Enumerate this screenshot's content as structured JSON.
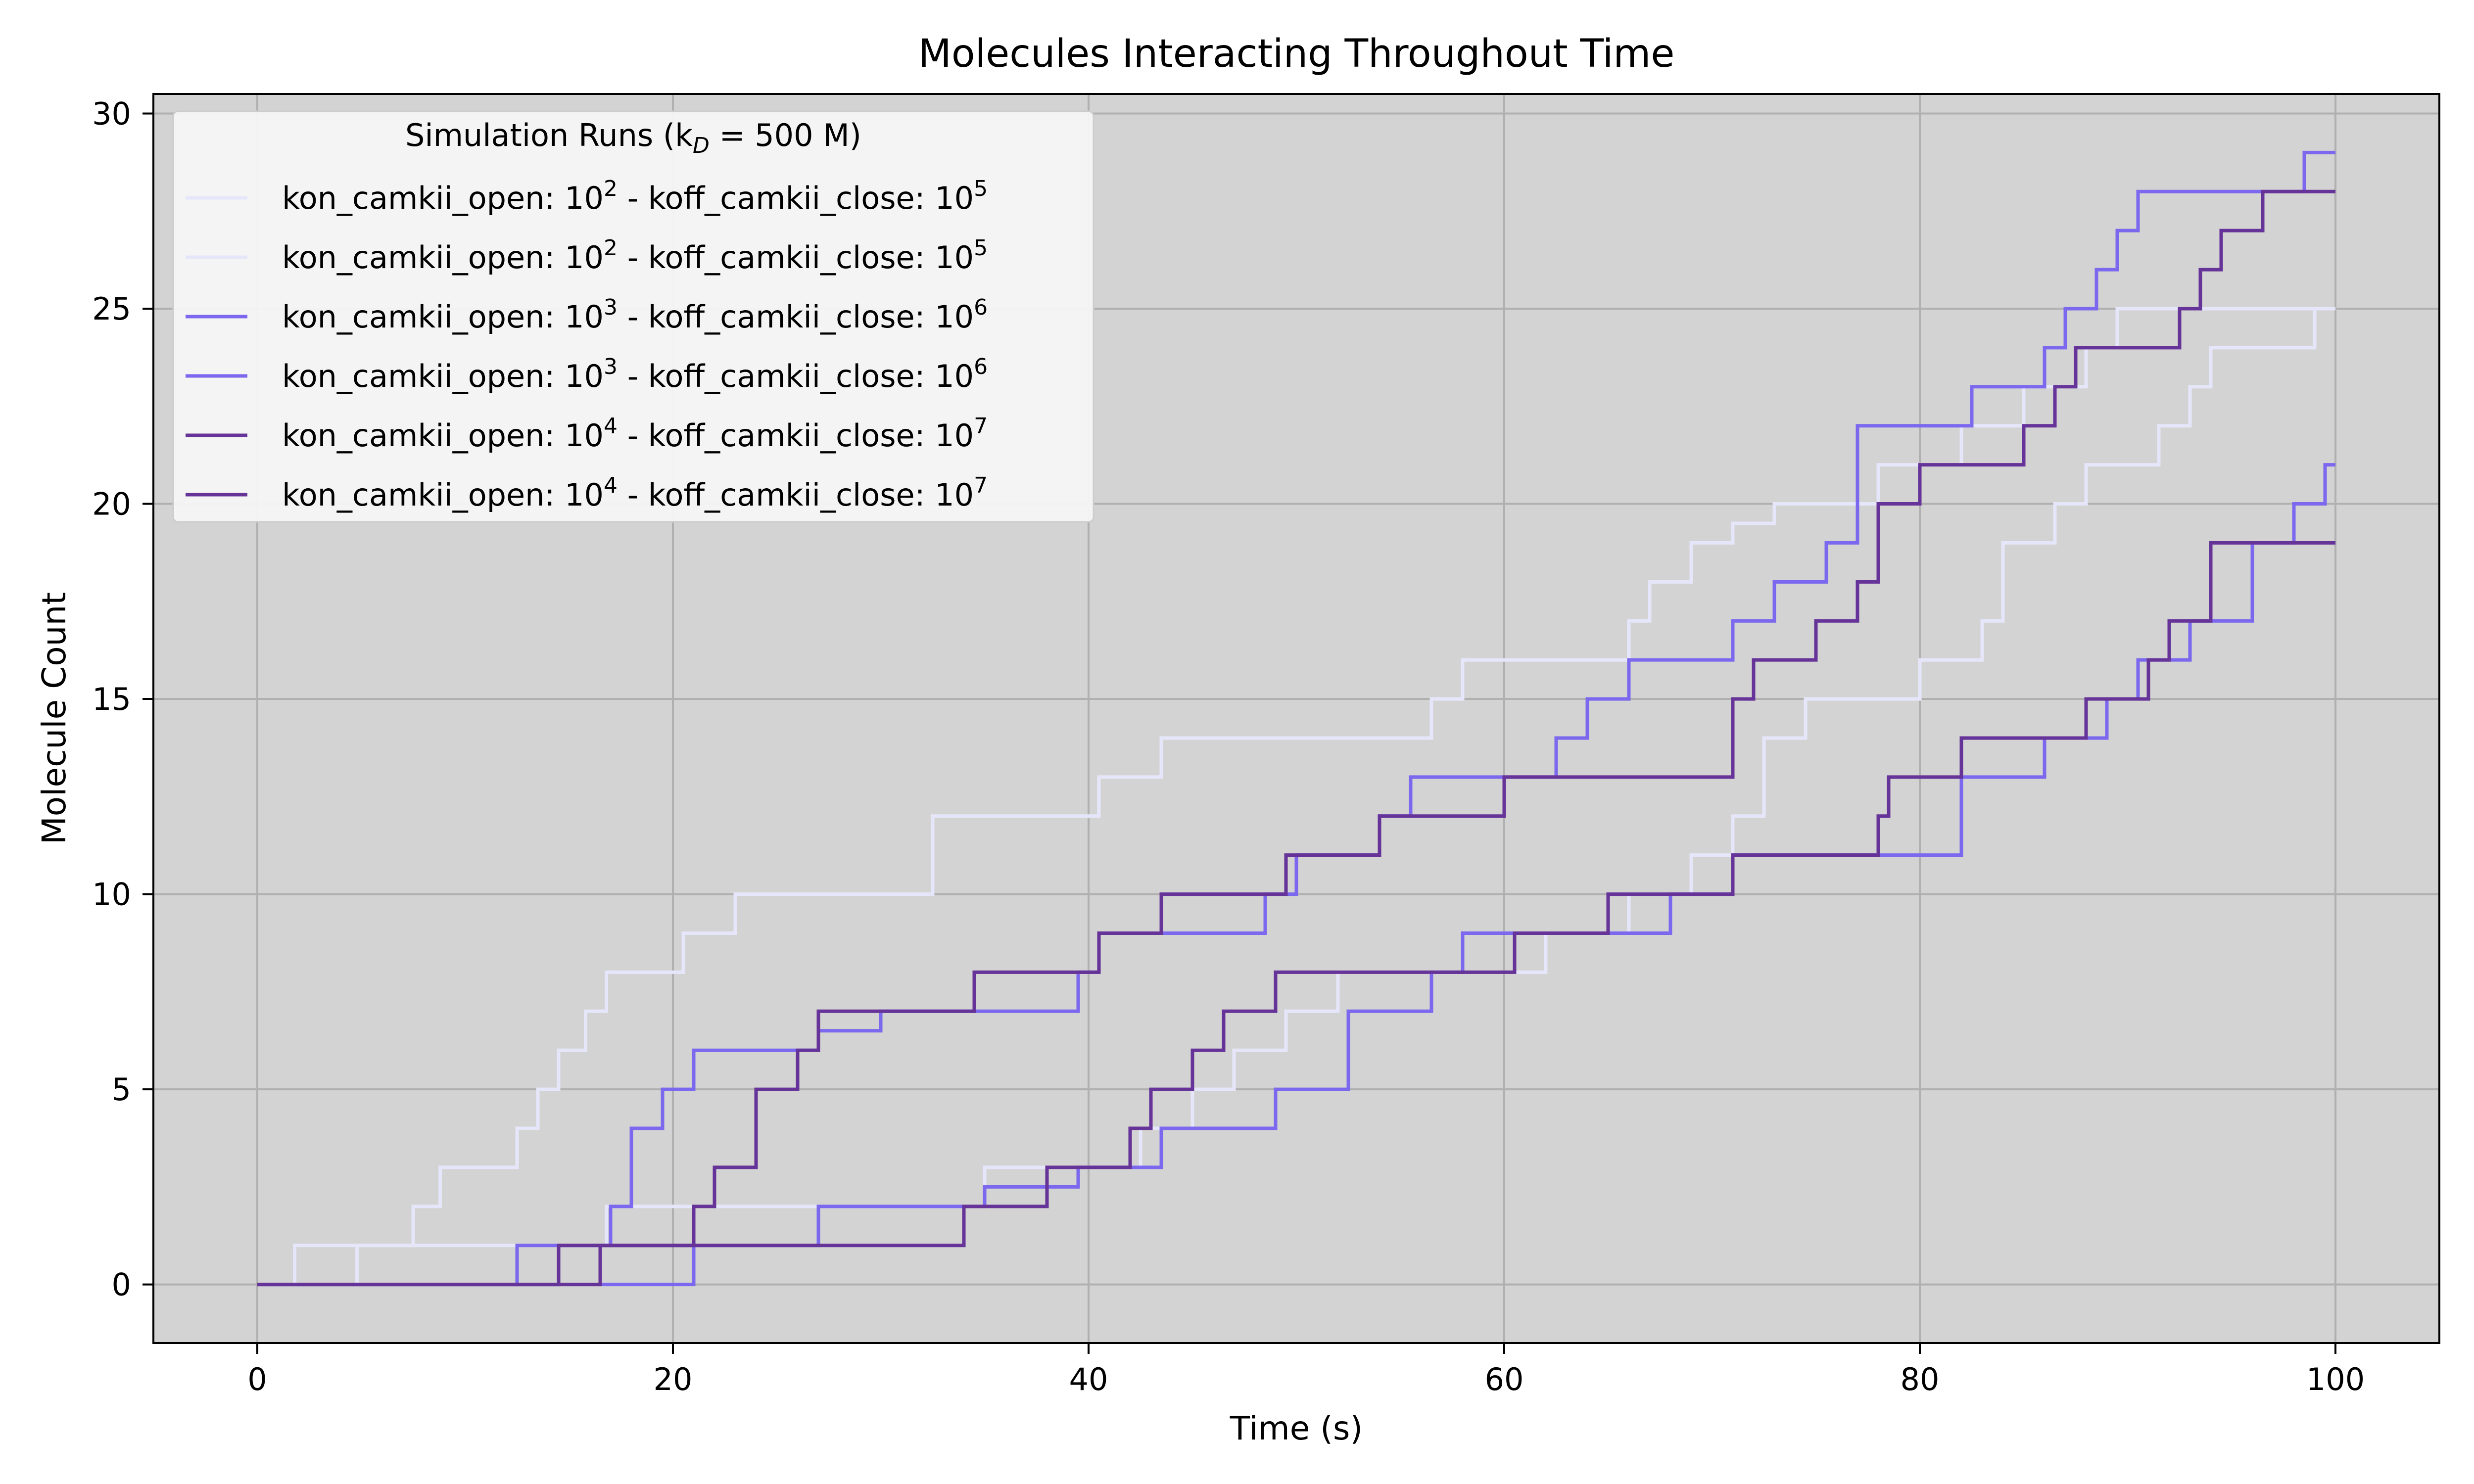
{
  "chart_data": {
    "type": "line",
    "title": "Molecules Interacting Throughout Time",
    "xlabel": "Time (s)",
    "ylabel": "Molecule Count",
    "xlim": [
      -5,
      105
    ],
    "ylim": [
      -1.5,
      30.5
    ],
    "xticks": [
      0,
      20,
      40,
      60,
      80,
      100
    ],
    "yticks": [
      0,
      5,
      10,
      15,
      20,
      25,
      30
    ],
    "grid": true,
    "background": "#d3d3d3",
    "legend": {
      "placement": "top-left",
      "title": "Simulation Runs (k",
      "title_sub": "D",
      "title_rest": " = 500 M)",
      "entries": [
        {
          "a": "kon_camkii_open: 10",
          "a_sup": "2",
          "b": " - koff_camkii_close: 10",
          "b_sup": "5",
          "color": "#e6e6fa"
        },
        {
          "a": "kon_camkii_open: 10",
          "a_sup": "2",
          "b": " - koff_camkii_close: 10",
          "b_sup": "5",
          "color": "#e6e6fa"
        },
        {
          "a": "kon_camkii_open: 10",
          "a_sup": "3",
          "b": " - koff_camkii_close: 10",
          "b_sup": "6",
          "color": "#7b68ee"
        },
        {
          "a": "kon_camkii_open: 10",
          "a_sup": "3",
          "b": " - koff_camkii_close: 10",
          "b_sup": "6",
          "color": "#7b68ee"
        },
        {
          "a": "kon_camkii_open: 10",
          "a_sup": "4",
          "b": " - koff_camkii_close: 10",
          "b_sup": "7",
          "color": "#663399"
        },
        {
          "a": "kon_camkii_open: 10",
          "a_sup": "4",
          "b": " - koff_camkii_close: 10",
          "b_sup": "7",
          "color": "#663399"
        }
      ]
    },
    "series": [
      {
        "color": "#e6e6fa",
        "steps": [
          [
            0,
            0
          ],
          [
            1.8,
            1
          ],
          [
            7.5,
            2
          ],
          [
            8.8,
            3
          ],
          [
            12.5,
            4
          ],
          [
            13.5,
            5
          ],
          [
            14.5,
            6
          ],
          [
            15.8,
            7
          ],
          [
            16.8,
            8
          ],
          [
            20.5,
            9
          ],
          [
            23,
            10
          ],
          [
            32.5,
            12
          ],
          [
            40.5,
            13
          ],
          [
            43.5,
            14
          ],
          [
            56.5,
            15
          ],
          [
            58,
            16
          ],
          [
            66,
            17
          ],
          [
            67,
            18
          ],
          [
            69,
            19
          ],
          [
            71,
            19.5
          ],
          [
            73,
            20
          ],
          [
            78,
            21
          ],
          [
            82,
            22
          ],
          [
            85,
            23
          ],
          [
            88,
            24
          ],
          [
            89.5,
            25
          ],
          [
            100,
            25
          ]
        ]
      },
      {
        "color": "#e6e6fa",
        "steps": [
          [
            0,
            0
          ],
          [
            4.8,
            1
          ],
          [
            16.8,
            2
          ],
          [
            27,
            2
          ],
          [
            35,
            3
          ],
          [
            42.5,
            4
          ],
          [
            45,
            5
          ],
          [
            47,
            6
          ],
          [
            49.5,
            7
          ],
          [
            52,
            8
          ],
          [
            62,
            9
          ],
          [
            66,
            10
          ],
          [
            69,
            11
          ],
          [
            71,
            12
          ],
          [
            72.5,
            14
          ],
          [
            74.5,
            15
          ],
          [
            80,
            16
          ],
          [
            83,
            17
          ],
          [
            84,
            19
          ],
          [
            86.5,
            20
          ],
          [
            88,
            21
          ],
          [
            91.5,
            22
          ],
          [
            93,
            23
          ],
          [
            94,
            24
          ],
          [
            99,
            25
          ],
          [
            100,
            25
          ]
        ]
      },
      {
        "color": "#7b68ee",
        "steps": [
          [
            0,
            0
          ],
          [
            12.5,
            1
          ],
          [
            17,
            2
          ],
          [
            18,
            4
          ],
          [
            19.5,
            5
          ],
          [
            21,
            6
          ],
          [
            27,
            6.5
          ],
          [
            30,
            7
          ],
          [
            39.5,
            8
          ],
          [
            40.5,
            9
          ],
          [
            48.5,
            10
          ],
          [
            50,
            11
          ],
          [
            54,
            12
          ],
          [
            55.5,
            13
          ],
          [
            62.5,
            14
          ],
          [
            64,
            15
          ],
          [
            66,
            16
          ],
          [
            71,
            17
          ],
          [
            73,
            18
          ],
          [
            75.5,
            19
          ],
          [
            77,
            22
          ],
          [
            82.5,
            23
          ],
          [
            86,
            24
          ],
          [
            87,
            25
          ],
          [
            88.5,
            26
          ],
          [
            89.5,
            27
          ],
          [
            90.5,
            28
          ],
          [
            98.5,
            29
          ],
          [
            100,
            29
          ]
        ]
      },
      {
        "color": "#7b68ee",
        "steps": [
          [
            0,
            0
          ],
          [
            21,
            1
          ],
          [
            27,
            2
          ],
          [
            35,
            2.5
          ],
          [
            39.5,
            3
          ],
          [
            43.5,
            4
          ],
          [
            49,
            5
          ],
          [
            52.5,
            7
          ],
          [
            56.5,
            8
          ],
          [
            58,
            9
          ],
          [
            68,
            10
          ],
          [
            71,
            11
          ],
          [
            82,
            13
          ],
          [
            86,
            14
          ],
          [
            89,
            15
          ],
          [
            90.5,
            16
          ],
          [
            93,
            17
          ],
          [
            96,
            19
          ],
          [
            98,
            20
          ],
          [
            99.5,
            21
          ],
          [
            100,
            21
          ]
        ]
      },
      {
        "color": "#663399",
        "steps": [
          [
            0,
            0
          ],
          [
            14.5,
            1
          ],
          [
            21,
            2
          ],
          [
            22,
            3
          ],
          [
            24,
            5
          ],
          [
            26,
            6
          ],
          [
            27,
            7
          ],
          [
            34.5,
            8
          ],
          [
            40.5,
            9
          ],
          [
            43.5,
            10
          ],
          [
            49.5,
            11
          ],
          [
            54,
            12
          ],
          [
            60,
            13
          ],
          [
            71,
            15
          ],
          [
            72,
            16
          ],
          [
            75,
            17
          ],
          [
            77,
            18
          ],
          [
            78,
            20
          ],
          [
            80,
            21
          ],
          [
            85,
            22
          ],
          [
            86.5,
            23
          ],
          [
            87.5,
            24
          ],
          [
            92.5,
            25
          ],
          [
            93.5,
            26
          ],
          [
            94.5,
            27
          ],
          [
            96.5,
            28
          ],
          [
            100,
            28
          ]
        ]
      },
      {
        "color": "#663399",
        "steps": [
          [
            0,
            0
          ],
          [
            16.5,
            1
          ],
          [
            34,
            2
          ],
          [
            38,
            3
          ],
          [
            42,
            4
          ],
          [
            43,
            5
          ],
          [
            45,
            6
          ],
          [
            46.5,
            7
          ],
          [
            49,
            8
          ],
          [
            52,
            8
          ],
          [
            60.5,
            9
          ],
          [
            65,
            10
          ],
          [
            71,
            11
          ],
          [
            78,
            12
          ],
          [
            78.5,
            13
          ],
          [
            82,
            14
          ],
          [
            88,
            15
          ],
          [
            91,
            16
          ],
          [
            92,
            17
          ],
          [
            94,
            19
          ],
          [
            100,
            19
          ]
        ]
      }
    ]
  }
}
